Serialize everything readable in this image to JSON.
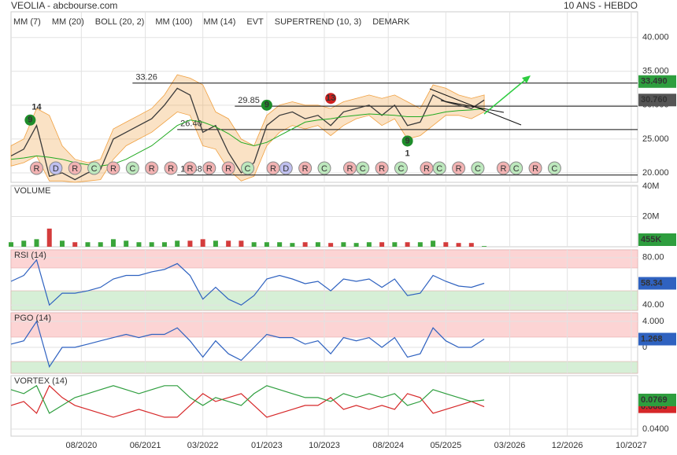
{
  "header": {
    "title": "VEOLIA - abcbourse.com",
    "period": "10 ANS - HEBDO"
  },
  "chart_data": [
    {
      "type": "line",
      "legend": [
        {
          "name": "MM (7)",
          "color": "#1f3fbf"
        },
        {
          "name": "MM (20)",
          "color": "#d62728"
        },
        {
          "name": "BOLL (20, 2)",
          "color": "#f0a040"
        },
        {
          "name": "MM (100)",
          "color": "#22aa22"
        },
        {
          "name": "MM (14)",
          "color": "#222222"
        },
        {
          "name": "EVT",
          "color": "#222222"
        },
        {
          "name": "SUPERTREND (10, 3)",
          "color": "#c0282d"
        },
        {
          "name": "DEMARK",
          "color": "#1a8a3a"
        }
      ],
      "x": [
        "09/2019",
        "11/2019",
        "01/2020",
        "03/2020",
        "05/2020",
        "07/2020",
        "09/2020",
        "11/2020",
        "01/2021",
        "03/2021",
        "05/2021",
        "07/2021",
        "09/2021",
        "11/2021",
        "01/2022",
        "03/2022",
        "05/2022",
        "07/2022",
        "09/2022",
        "11/2022",
        "01/2023",
        "03/2023",
        "05/2023",
        "07/2023",
        "09/2023",
        "11/2023",
        "01/2024",
        "03/2024",
        "05/2024",
        "07/2024",
        "09/2024",
        "11/2024",
        "01/2025",
        "03/2025",
        "05/2025",
        "07/2025",
        "09/2025",
        "11/2025"
      ],
      "xlim": [
        "09/2019",
        "11/2027"
      ],
      "xticks": [
        "08/2020",
        "06/2021",
        "03/2022",
        "01/2023",
        "10/2023",
        "08/2024",
        "05/2025",
        "03/2026",
        "12/2026",
        "10/2027"
      ],
      "ylim": [
        18.6,
        43.8
      ],
      "yticks": [
        {
          "value": 40,
          "label": "40.000"
        },
        {
          "value": 35,
          "label": "35.000"
        },
        {
          "value": 30,
          "label": "30.000"
        },
        {
          "value": 25,
          "label": "25.000"
        },
        {
          "value": 20,
          "label": "20.000"
        }
      ],
      "series": [
        {
          "color": "#3a3a3a",
          "values": [
            22.5,
            23.5,
            27,
            19.5,
            20,
            19,
            20,
            20.5,
            25,
            26,
            27,
            28,
            30,
            32.5,
            31.5,
            26,
            27,
            23,
            20,
            21.5,
            27,
            28.5,
            29,
            28,
            28.5,
            27,
            29,
            29.5,
            30,
            28.5,
            30,
            27,
            27.5,
            31.5,
            30.5,
            30,
            29.5,
            30.76
          ],
          "value_labels": [
            null,
            null,
            null,
            null,
            null,
            null,
            null,
            null,
            null,
            null,
            null,
            null,
            null,
            null,
            null,
            null,
            null,
            null,
            null,
            null,
            null,
            null,
            null,
            null,
            null,
            null,
            null,
            null,
            null,
            null,
            null,
            null,
            null,
            null,
            null,
            null,
            null,
            "30.760"
          ]
        },
        {
          "color": "#22aa22",
          "values": [
            22,
            22.2,
            22.5,
            22.3,
            22,
            21.5,
            21.2,
            21,
            21.3,
            22,
            23,
            24,
            25.5,
            27,
            27.8,
            27.5,
            26.8,
            25.8,
            24.5,
            24,
            24.5,
            25.5,
            26.5,
            27.5,
            27.8,
            28,
            28.3,
            28.5,
            28.7,
            28.6,
            28.5,
            28.3,
            28.3,
            28.6,
            29,
            29.2,
            29.3,
            29.5
          ]
        }
      ],
      "band": {
        "color": "#f0a040",
        "upper": [
          24,
          25,
          29.5,
          28.5,
          24,
          22,
          21.5,
          22,
          26.5,
          27.5,
          28.5,
          29.5,
          31.5,
          34.5,
          34,
          33,
          29,
          28,
          25,
          24,
          28.5,
          30,
          30.5,
          30,
          30,
          29.5,
          30.5,
          31,
          31.5,
          31,
          31.5,
          30.5,
          29.5,
          33,
          32.5,
          31.5,
          31,
          31.5
        ],
        "lower": [
          21,
          21.5,
          22.5,
          18.8,
          18.8,
          18.6,
          18.8,
          19,
          22,
          24,
          25,
          26,
          27.5,
          29,
          28.5,
          24,
          23.5,
          20.5,
          18.8,
          19.5,
          24,
          26,
          27,
          26.5,
          27,
          25.5,
          27,
          28,
          28.5,
          27,
          28,
          25,
          25.5,
          27,
          28.5,
          28.5,
          28,
          29
        ]
      },
      "levels": [
        {
          "from": "04/2021",
          "value": 33.26
        },
        {
          "from": "08/2022",
          "value": 29.85
        },
        {
          "from": "11/2021",
          "value": 26.4,
          "label": "26.40"
        },
        {
          "from": "11/2021",
          "value": 19.68
        }
      ],
      "target": {
        "value": 33.49,
        "label": "33.490",
        "color": "#2e9e3e"
      },
      "last_color": "#555555",
      "demark": [
        {
          "x": "12/2019",
          "y": 27.8,
          "label": "9",
          "color": "#1e8c2a",
          "circle": true
        },
        {
          "x": "01/2020",
          "y": 29.7,
          "label": "14",
          "color": "#d62728",
          "circle": false
        },
        {
          "x": "01/2023",
          "y": 30.0,
          "label": "9",
          "color": "#1e8c2a",
          "circle": true
        },
        {
          "x": "11/2023",
          "y": 31.0,
          "label": "13",
          "color": "#d0201f",
          "circle": true
        },
        {
          "x": "11/2024",
          "y": 24.7,
          "label": "9",
          "color": "#1e8c2a",
          "circle": true
        },
        {
          "x": "11/2024",
          "y": 22.8,
          "label": "1",
          "color": "#d62728",
          "circle": false
        }
      ],
      "signal_colors": {
        "R": "#f3b3b3",
        "C": "#bde8bd",
        "D": "#c0c0f0"
      },
      "signals": [
        {
          "x": "01/2020",
          "label": "R"
        },
        {
          "x": "04/2020",
          "label": "D"
        },
        {
          "x": "07/2020",
          "label": "R"
        },
        {
          "x": "10/2020",
          "label": "C"
        },
        {
          "x": "01/2021",
          "label": "R"
        },
        {
          "x": "04/2021",
          "label": "C"
        },
        {
          "x": "07/2021",
          "label": "R"
        },
        {
          "x": "10/2021",
          "label": "R"
        },
        {
          "x": "01/2022",
          "label": "R"
        },
        {
          "x": "04/2022",
          "label": "R"
        },
        {
          "x": "07/2022",
          "label": "R"
        },
        {
          "x": "10/2022",
          "label": "C"
        },
        {
          "x": "02/2023",
          "label": "R"
        },
        {
          "x": "04/2023",
          "label": "D"
        },
        {
          "x": "07/2023",
          "label": "R"
        },
        {
          "x": "10/2023",
          "label": "C"
        },
        {
          "x": "02/2024",
          "label": "R"
        },
        {
          "x": "04/2024",
          "label": "C"
        },
        {
          "x": "07/2024",
          "label": "R"
        },
        {
          "x": "10/2024",
          "label": "C"
        },
        {
          "x": "02/2025",
          "label": "R"
        },
        {
          "x": "04/2025",
          "label": "C"
        },
        {
          "x": "07/2025",
          "label": "R"
        },
        {
          "x": "10/2025",
          "label": "C"
        },
        {
          "x": "02/2026",
          "label": "R"
        },
        {
          "x": "04/2026",
          "label": "C"
        },
        {
          "x": "07/2026",
          "label": "R"
        },
        {
          "x": "10/2026",
          "label": "C"
        }
      ]
    },
    {
      "type": "bar",
      "title": "VOLUME",
      "title_color": "#22aa22",
      "up_color": "#3aa53a",
      "down_color": "#d43c3c",
      "label_color": "#2e9e3e",
      "ylim": [
        0,
        40500000
      ],
      "yticks": [
        {
          "value": 20000000,
          "label": "20M"
        },
        {
          "value": 40000000,
          "label": "40M"
        }
      ],
      "values": [
        3000000,
        4000000,
        5000000,
        12000000,
        4000000,
        3000000,
        3000000,
        3000000,
        5000000,
        4000000,
        3000000,
        3000000,
        3000000,
        4000000,
        4000000,
        5000000,
        4000000,
        4000000,
        4000000,
        3000000,
        3000000,
        3000000,
        2500000,
        3000000,
        3000000,
        2500000,
        3000000,
        2500000,
        3000000,
        3000000,
        3000000,
        3000000,
        3000000,
        4000000,
        3000000,
        2500000,
        2500000,
        455000
      ],
      "value_labels": [
        null,
        null,
        null,
        null,
        null,
        null,
        null,
        null,
        null,
        null,
        null,
        null,
        null,
        null,
        null,
        null,
        null,
        null,
        null,
        null,
        null,
        null,
        null,
        null,
        null,
        null,
        null,
        null,
        null,
        null,
        null,
        null,
        null,
        null,
        null,
        null,
        null,
        "455K"
      ]
    },
    {
      "type": "line",
      "title": "RSI (14)",
      "title_color": "#2a4a8a",
      "ylim": [
        35.5,
        86.5
      ],
      "yticks": [
        {
          "value": 80,
          "label": "80.00"
        },
        {
          "value": 40,
          "label": "40.00"
        }
      ],
      "series": [
        {
          "color": "#2f62c0",
          "values": [
            60,
            65,
            78,
            40,
            50,
            50,
            52,
            55,
            62,
            65,
            65,
            68,
            70,
            75,
            65,
            45,
            55,
            45,
            40,
            48,
            62,
            65,
            62,
            58,
            60,
            52,
            62,
            60,
            62,
            55,
            62,
            48,
            50,
            65,
            60,
            56,
            55,
            58.34
          ]
        }
      ]
    },
    {
      "type": "line",
      "title": "PGO (14)",
      "title_color": "#2a4a8a",
      "ylim": [
        -4,
        5.33
      ],
      "yticks": [
        {
          "value": 4,
          "label": "4.000"
        },
        0
      ],
      "series": [
        {
          "color": "#2f62c0",
          "values": [
            0.5,
            1,
            4,
            -3,
            0,
            0,
            0.5,
            1,
            1.5,
            2,
            1.5,
            2,
            2,
            3,
            1,
            -1.5,
            1,
            -1,
            -2,
            0,
            2,
            1.5,
            1.5,
            0.5,
            1,
            -1,
            1.5,
            1,
            1.5,
            0,
            1.5,
            -1.5,
            -1,
            3,
            1,
            0,
            0,
            1.268
          ]
        }
      ]
    },
    {
      "type": "line",
      "title": "VORTEX (14)",
      "title_color": "#2a4a8a",
      "ylim": [
        0.031,
        0.1078
      ],
      "yticks": [
        {
          "value": 0.04,
          "label": "0.0400"
        }
      ],
      "series": [
        {
          "color": "#d62728",
          "values": [
            0.07,
            0.075,
            0.06,
            0.095,
            0.08,
            0.07,
            0.065,
            0.06,
            0.055,
            0.06,
            0.065,
            0.06,
            0.055,
            0.055,
            0.07,
            0.085,
            0.075,
            0.08,
            0.085,
            0.07,
            0.055,
            0.06,
            0.065,
            0.07,
            0.07,
            0.08,
            0.065,
            0.07,
            0.065,
            0.07,
            0.065,
            0.085,
            0.08,
            0.06,
            0.065,
            0.07,
            0.075,
            0.0683
          ]
        },
        {
          "color": "#2e9e3e",
          "values": [
            0.09,
            0.085,
            0.095,
            0.06,
            0.07,
            0.08,
            0.085,
            0.09,
            0.095,
            0.09,
            0.085,
            0.09,
            0.095,
            0.095,
            0.08,
            0.07,
            0.08,
            0.075,
            0.07,
            0.085,
            0.095,
            0.09,
            0.085,
            0.08,
            0.08,
            0.075,
            0.085,
            0.08,
            0.085,
            0.08,
            0.085,
            0.07,
            0.075,
            0.09,
            0.085,
            0.08,
            0.075,
            0.0769
          ]
        }
      ]
    }
  ]
}
